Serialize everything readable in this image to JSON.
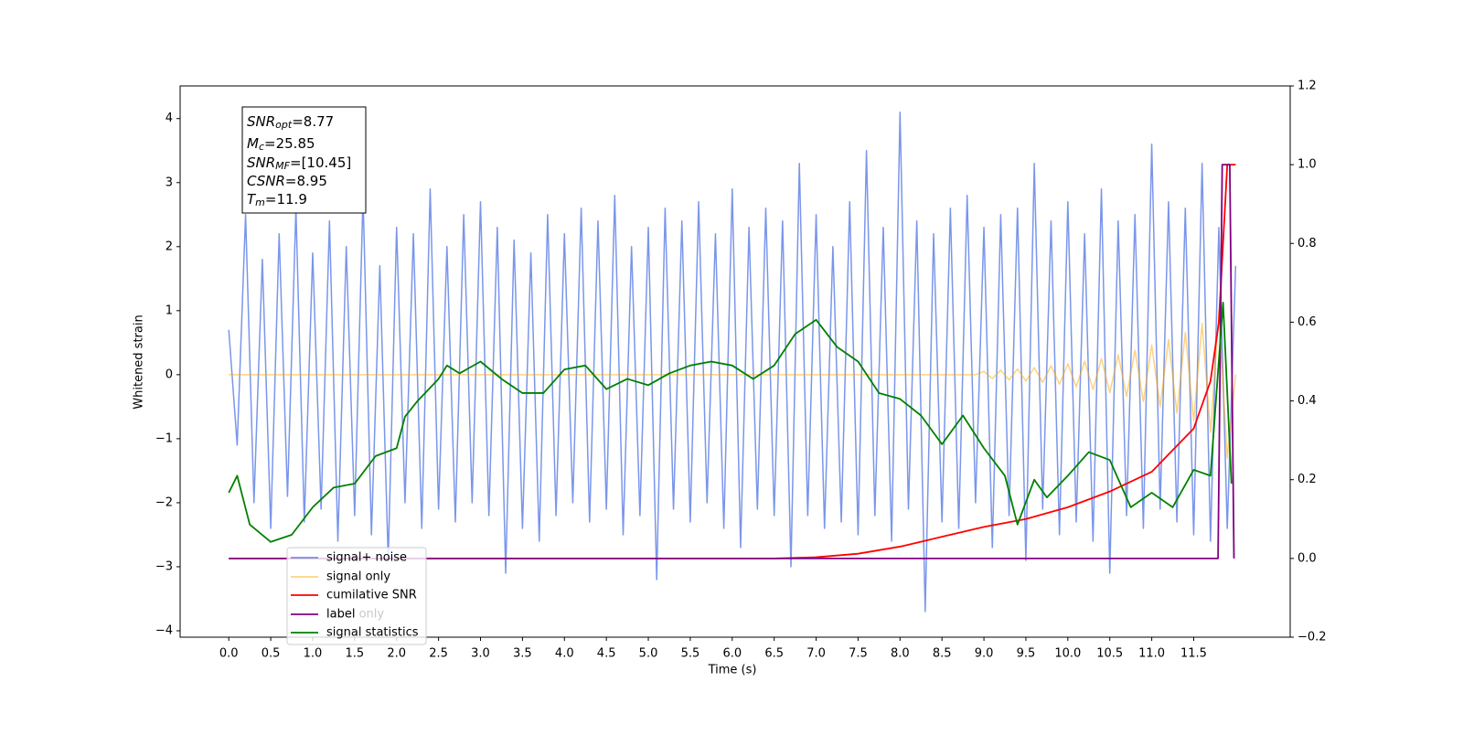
{
  "chart_data": {
    "type": "line",
    "xlabel": "Time (s)",
    "ylabel": "Whitened strain",
    "xlim": [
      -0.58,
      12.65
    ],
    "ylim": [
      -4.1,
      4.51
    ],
    "y2lim": [
      -0.2,
      1.2
    ],
    "xticks": [
      {
        "value": 0,
        "label": "0.0"
      },
      0.5,
      {
        "value": 1,
        "label": "1.0"
      },
      1.5,
      {
        "value": 2,
        "label": "2.0"
      },
      2.5,
      {
        "value": 3,
        "label": "3.0"
      },
      3.5,
      {
        "value": 4,
        "label": "4.0"
      },
      4.5,
      {
        "value": 5,
        "label": "5.0"
      },
      5.5,
      {
        "value": 6,
        "label": "6.0"
      },
      6.5,
      {
        "value": 7,
        "label": "7.0"
      },
      7.5,
      {
        "value": 8,
        "label": "8.0"
      },
      8.5,
      {
        "value": 9,
        "label": "9.0"
      },
      9.5,
      {
        "value": 10,
        "label": "10.0"
      },
      10.5,
      {
        "value": 11,
        "label": "11.0"
      },
      11.5
    ],
    "yticks": [
      {
        "value": -4,
        "label": "−4"
      },
      {
        "value": -3,
        "label": "−3"
      },
      {
        "value": -2,
        "label": "−2"
      },
      {
        "value": -1,
        "label": "−1"
      },
      0,
      1,
      2,
      3,
      4
    ],
    "y2ticks": [
      {
        "value": -0.2,
        "label": "−0.2"
      },
      {
        "value": 0,
        "label": "0.0"
      },
      0.2,
      0.4,
      0.6,
      0.8,
      {
        "value": 1,
        "label": "1.0"
      },
      1.2
    ],
    "x": [
      0,
      0.1,
      0.2,
      0.3,
      0.4,
      0.5,
      0.6,
      0.7,
      0.8,
      0.9,
      1,
      1.1,
      1.2,
      1.3,
      1.4,
      1.5,
      1.6,
      1.7,
      1.8,
      1.9,
      2,
      2.1,
      2.2,
      2.3,
      2.4,
      2.5,
      2.6,
      2.7,
      2.8,
      2.9,
      3,
      3.1,
      3.2,
      3.3,
      3.4,
      3.5,
      3.6,
      3.7,
      3.8,
      3.9,
      4,
      4.1,
      4.2,
      4.3,
      4.4,
      4.5,
      4.6,
      4.7,
      4.8,
      4.9,
      5,
      5.1,
      5.2,
      5.3,
      5.4,
      5.5,
      5.6,
      5.7,
      5.8,
      5.9,
      6,
      6.1,
      6.2,
      6.3,
      6.4,
      6.5,
      6.6,
      6.7,
      6.8,
      6.9,
      7,
      7.1,
      7.2,
      7.3,
      7.4,
      7.5,
      7.6,
      7.7,
      7.8,
      7.9,
      8,
      8.1,
      8.2,
      8.3,
      8.4,
      8.5,
      8.6,
      8.7,
      8.8,
      8.9,
      9,
      9.1,
      9.2,
      9.3,
      9.4,
      9.5,
      9.6,
      9.7,
      9.8,
      9.9,
      10,
      10.1,
      10.2,
      10.3,
      10.4,
      10.5,
      10.6,
      10.7,
      10.8,
      10.9,
      11,
      11.1,
      11.2,
      11.3,
      11.4,
      11.5,
      11.6,
      11.7,
      11.8,
      11.9,
      12
    ],
    "series": [
      {
        "name": "signal+ noise",
        "color": "#4169e1",
        "alpha": 0.7,
        "width": 1.5,
        "axis": "y",
        "values": [
          0.7,
          -1.1,
          2.5,
          -2.0,
          1.8,
          -2.4,
          2.2,
          -1.9,
          2.6,
          -2.3,
          1.9,
          -2.1,
          2.4,
          -2.6,
          2.0,
          -2.2,
          2.8,
          -2.5,
          1.7,
          -2.9,
          2.3,
          -2.0,
          2.2,
          -2.4,
          2.9,
          -2.1,
          2.0,
          -2.3,
          2.5,
          -2.0,
          2.7,
          -2.2,
          2.3,
          -3.1,
          2.1,
          -2.4,
          1.9,
          -2.6,
          2.5,
          -2.2,
          2.2,
          -2.0,
          2.6,
          -2.3,
          2.4,
          -2.1,
          2.8,
          -2.5,
          2.0,
          -2.2,
          2.3,
          -3.2,
          2.6,
          -2.1,
          2.4,
          -2.3,
          2.7,
          -2.0,
          2.2,
          -2.4,
          2.9,
          -2.7,
          2.3,
          -2.1,
          2.6,
          -2.2,
          2.4,
          -3.0,
          3.3,
          -2.2,
          2.5,
          -2.4,
          2.0,
          -2.3,
          2.7,
          -2.5,
          3.5,
          -2.2,
          2.3,
          -2.6,
          4.1,
          -2.1,
          2.4,
          -3.7,
          2.2,
          -2.3,
          2.6,
          -2.4,
          2.8,
          -2.0,
          2.3,
          -2.7,
          2.5,
          -2.2,
          2.6,
          -2.9,
          3.3,
          -2.1,
          2.4,
          -2.5,
          2.7,
          -2.3,
          2.2,
          -2.6,
          2.9,
          -3.1,
          2.4,
          -2.2,
          2.5,
          -2.4,
          3.6,
          -2.1,
          2.7,
          -2.3,
          2.6,
          -2.5,
          3.3,
          -2.6,
          2.3,
          -2.4,
          1.7
        ]
      },
      {
        "name": "signal only",
        "color": "#ffa500",
        "alpha": 0.5,
        "width": 1.5,
        "axis": "y",
        "values": [
          0,
          0,
          0,
          0,
          0,
          0,
          0,
          0,
          0,
          0,
          0,
          0,
          0,
          0,
          0,
          0,
          0,
          0,
          0,
          0,
          0,
          0,
          0,
          0,
          0,
          0,
          0,
          0,
          0,
          0,
          0,
          0,
          0,
          0,
          0,
          0,
          0,
          0,
          0,
          0,
          0,
          0,
          0,
          0,
          0,
          0,
          0,
          0,
          0,
          0,
          0,
          0,
          0,
          0,
          0,
          0,
          0,
          0,
          0,
          0,
          0,
          0,
          0,
          0,
          0,
          0,
          0,
          0,
          0,
          0,
          0,
          0,
          0,
          0,
          0,
          0,
          0,
          0,
          0,
          0,
          0,
          0,
          0,
          0,
          0,
          0,
          0,
          0,
          0,
          0,
          0.05,
          -0.06,
          0.07,
          -0.08,
          0.09,
          -0.1,
          0.11,
          -0.12,
          0.14,
          -0.15,
          0.17,
          -0.19,
          0.21,
          -0.23,
          0.25,
          -0.28,
          0.31,
          -0.34,
          0.38,
          -0.42,
          0.46,
          -0.5,
          0.55,
          -0.6,
          0.66,
          -0.72,
          0.8,
          -0.9,
          1.0,
          -1.3,
          0
        ]
      },
      {
        "name": "cumilative SNR",
        "color": "#ff0000",
        "alpha": 1,
        "width": 1.8,
        "axis": "y2",
        "x": [
          0,
          6.5,
          7,
          7.5,
          8,
          8.5,
          9,
          9.5,
          10,
          10.5,
          11,
          11.5,
          11.7,
          11.8,
          11.85,
          11.9,
          12
        ],
        "values": [
          0,
          0,
          0.003,
          0.012,
          0.03,
          0.055,
          0.08,
          0.1,
          0.13,
          0.17,
          0.22,
          0.33,
          0.45,
          0.6,
          0.8,
          1.0,
          1.0
        ]
      },
      {
        "name": "label",
        "color": "#800080",
        "alpha": 1,
        "width": 1.8,
        "axis": "y2",
        "x": [
          0,
          11.79,
          11.84,
          11.93,
          11.98
        ],
        "values": [
          0,
          0,
          1,
          1,
          0
        ]
      },
      {
        "name": "signal statistics",
        "color": "#008000",
        "alpha": 1,
        "width": 1.8,
        "axis": "y2",
        "x": [
          0,
          0.1,
          0.25,
          0.5,
          0.75,
          1,
          1.25,
          1.5,
          1.75,
          2,
          2.1,
          2.25,
          2.5,
          2.6,
          2.75,
          3,
          3.25,
          3.5,
          3.75,
          4,
          4.25,
          4.5,
          4.75,
          5,
          5.25,
          5.5,
          5.75,
          6,
          6.25,
          6.5,
          6.75,
          7,
          7.25,
          7.5,
          7.75,
          8,
          8.25,
          8.5,
          8.75,
          9,
          9.25,
          9.4,
          9.6,
          9.75,
          10,
          10.25,
          10.5,
          10.75,
          11,
          11.25,
          11.5,
          11.7,
          11.85,
          11.95
        ],
        "values": [
          0.167,
          0.21,
          0.086,
          0.042,
          0.06,
          0.13,
          0.18,
          0.19,
          0.26,
          0.28,
          0.36,
          0.4,
          0.456,
          0.49,
          0.47,
          0.5,
          0.456,
          0.42,
          0.42,
          0.48,
          0.49,
          0.43,
          0.456,
          0.44,
          0.47,
          0.49,
          0.5,
          0.49,
          0.456,
          0.49,
          0.57,
          0.606,
          0.537,
          0.5,
          0.42,
          0.405,
          0.363,
          0.29,
          0.363,
          0.28,
          0.21,
          0.086,
          0.2,
          0.155,
          0.21,
          0.27,
          0.25,
          0.13,
          0.167,
          0.13,
          0.225,
          0.21,
          0.65,
          0.19
        ]
      }
    ],
    "legend_ghost": "label only",
    "text_box": [
      {
        "name": "SNR",
        "sub": "opt",
        "rest": "=8.77"
      },
      {
        "name": "M",
        "sub": "c",
        "rest": "=25.85"
      },
      {
        "name": "SNR",
        "sub": "MF",
        "rest": "=[10.45]"
      },
      {
        "name": "CSNR",
        "rest": "=8.95"
      },
      {
        "name": "T",
        "sub": "m",
        "rest": "=11.9"
      }
    ]
  }
}
